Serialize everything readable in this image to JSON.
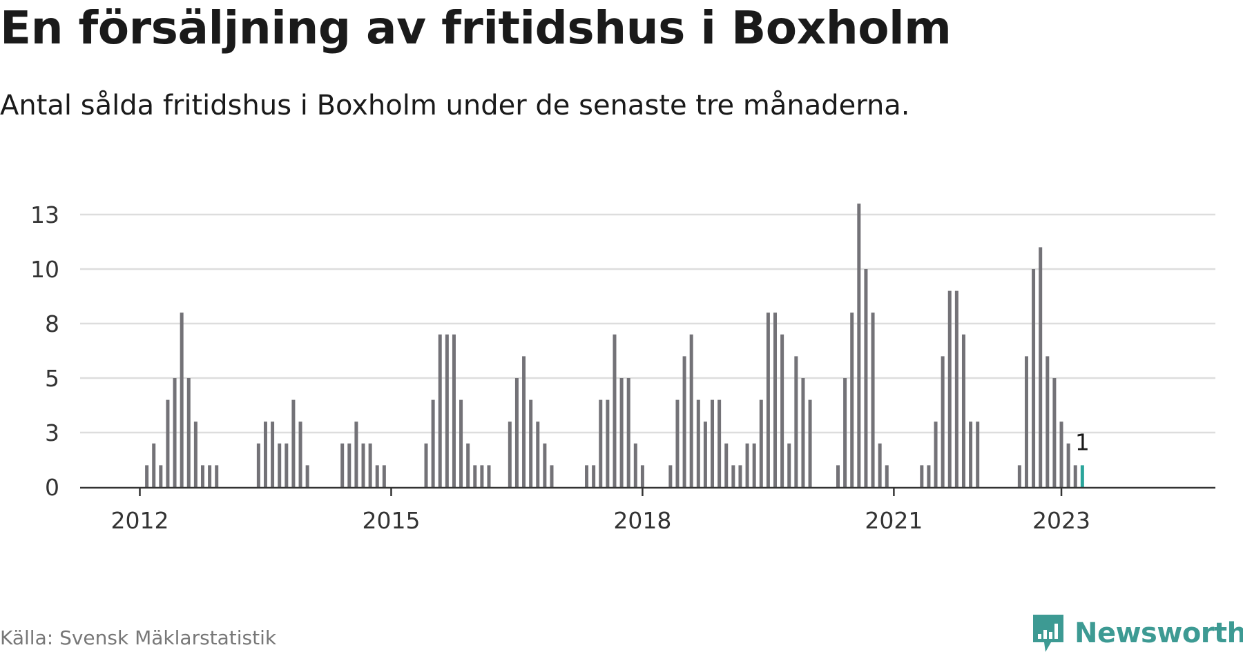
{
  "title": "En försäljning av fritidshus i Boxholm",
  "subtitle": "Antal sålda fritidshus i Boxholm under de senaste tre månaderna.",
  "source": "Källa: Svensk Mäklarstatistik",
  "brand": "Newsworthy",
  "colors": {
    "bar": "#737277",
    "highlight": "#2aa59b",
    "grid": "#dddddd",
    "axis": "#333333",
    "brand": "#3d9a93"
  },
  "chart_data": {
    "type": "bar",
    "y_ticks": [
      "0",
      "3",
      "5",
      "8",
      "10",
      "13"
    ],
    "y_tick_values": [
      0,
      2.5,
      5,
      7.5,
      10,
      12.5
    ],
    "ylim": [
      0,
      12.5
    ],
    "x_ticks": [
      {
        "label": "2012",
        "index": 0
      },
      {
        "label": "2015",
        "index": 36
      },
      {
        "label": "2018",
        "index": 72
      },
      {
        "label": "2021",
        "index": 108
      },
      {
        "label": "2023",
        "index": 132
      }
    ],
    "grid": true,
    "values": [
      0,
      1,
      2,
      1,
      4,
      5,
      8,
      5,
      3,
      1,
      1,
      1,
      0,
      0,
      0,
      0,
      0,
      2,
      3,
      3,
      2,
      2,
      4,
      3,
      1,
      0,
      0,
      0,
      0,
      2,
      2,
      3,
      2,
      2,
      1,
      1,
      0,
      0,
      0,
      0,
      0,
      2,
      4,
      7,
      7,
      7,
      4,
      2,
      1,
      1,
      1,
      0,
      0,
      3,
      5,
      6,
      4,
      3,
      2,
      1,
      0,
      0,
      0,
      0,
      1,
      1,
      4,
      4,
      7,
      5,
      5,
      2,
      1,
      0,
      0,
      0,
      1,
      4,
      6,
      7,
      4,
      3,
      4,
      4,
      2,
      1,
      1,
      2,
      2,
      4,
      8,
      8,
      7,
      2,
      6,
      5,
      4,
      0,
      0,
      0,
      1,
      5,
      8,
      13,
      10,
      8,
      2,
      1,
      0,
      0,
      0,
      0,
      1,
      1,
      3,
      6,
      9,
      9,
      7,
      3,
      3,
      0,
      0,
      0,
      0,
      0,
      1,
      6,
      10,
      11,
      6,
      5,
      3,
      2,
      1,
      1
    ],
    "bar_heights": [
      0,
      1,
      2,
      1,
      4,
      5,
      8,
      5,
      3,
      1,
      1,
      1,
      0,
      0,
      0,
      0,
      0,
      2,
      3,
      3,
      2,
      2,
      4,
      3,
      1,
      0,
      0,
      0,
      0,
      2,
      2,
      3,
      2,
      2,
      1,
      1,
      0,
      0,
      0,
      0,
      0,
      2,
      4,
      7,
      7,
      7,
      4,
      2,
      1,
      1,
      1,
      0,
      0,
      3,
      5,
      6,
      4,
      3,
      2,
      1,
      0,
      0,
      0,
      0,
      1,
      1,
      4,
      4,
      7,
      5,
      5,
      2,
      1,
      0,
      0,
      0,
      1,
      4,
      6,
      7,
      4,
      3,
      4,
      4,
      2,
      1,
      1,
      2,
      2,
      4,
      8,
      8,
      7,
      2,
      6,
      5,
      4,
      0,
      0,
      0,
      1,
      5,
      8,
      13,
      10,
      8,
      2,
      1,
      0,
      0,
      0,
      0,
      1,
      1,
      3,
      6,
      9,
      9,
      7,
      3,
      3,
      0,
      0,
      0,
      0,
      0,
      1,
      6,
      10,
      11,
      6,
      5,
      3,
      2,
      1,
      1
    ],
    "last_value_label": "1"
  }
}
